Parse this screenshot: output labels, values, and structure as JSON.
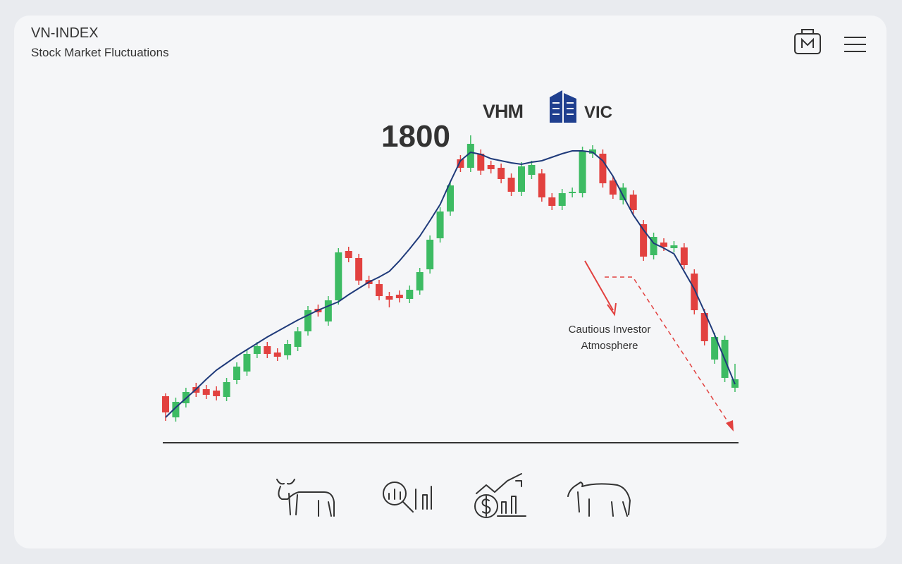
{
  "header": {
    "title": "VN-INDEX",
    "subtitle": "Stock Market Fluctuations"
  },
  "chart_data": {
    "type": "candlestick",
    "logos": [
      "VHM",
      "VIC"
    ],
    "annotation": [
      "Cautious Investor",
      "Atmosphere"
    ],
    "ylim": [
      1000,
      1900
    ],
    "yticks": [
      1800
    ],
    "up_color": "#3dbb63",
    "down_color": "#e2413f",
    "open": [
      1132,
      1072,
      1112,
      1158,
      1152,
      1148,
      1130,
      1178,
      1202,
      1252,
      1274,
      1256,
      1248,
      1272,
      1316,
      1380,
      1344,
      1404,
      1544,
      1524,
      1462,
      1450,
      1416,
      1420,
      1408,
      1432,
      1492,
      1580,
      1656,
      1804,
      1780,
      1820,
      1788,
      1780,
      1752,
      1712,
      1760,
      1764,
      1696,
      1672,
      1708,
      1708,
      1820,
      1820,
      1744,
      1688,
      1704,
      1620,
      1532,
      1568,
      1552,
      1554,
      1480,
      1368,
      1236,
      1184,
      1156
    ],
    "high": [
      1140,
      1128,
      1156,
      1170,
      1164,
      1160,
      1184,
      1228,
      1264,
      1286,
      1286,
      1268,
      1292,
      1328,
      1388,
      1392,
      1416,
      1552,
      1556,
      1536,
      1474,
      1462,
      1428,
      1432,
      1446,
      1496,
      1588,
      1668,
      1742,
      1816,
      1872,
      1832,
      1800,
      1792,
      1764,
      1796,
      1800,
      1776,
      1708,
      1720,
      1724,
      1840,
      1844,
      1832,
      1756,
      1736,
      1716,
      1632,
      1596,
      1580,
      1572,
      1566,
      1492,
      1380,
      1312,
      1304,
      1224
    ],
    "low": [
      1062,
      1060,
      1100,
      1130,
      1124,
      1120,
      1118,
      1166,
      1190,
      1240,
      1240,
      1232,
      1236,
      1260,
      1304,
      1358,
      1332,
      1392,
      1512,
      1448,
      1438,
      1404,
      1384,
      1398,
      1396,
      1420,
      1480,
      1568,
      1644,
      1768,
      1768,
      1760,
      1764,
      1736,
      1700,
      1700,
      1748,
      1684,
      1660,
      1660,
      1696,
      1696,
      1808,
      1724,
      1692,
      1676,
      1648,
      1516,
      1520,
      1544,
      1540,
      1492,
      1364,
      1276,
      1224,
      1172,
      1144
    ],
    "close": [
      1086,
      1116,
      1144,
      1142,
      1136,
      1132,
      1172,
      1216,
      1252,
      1274,
      1252,
      1244,
      1280,
      1316,
      1376,
      1370,
      1404,
      1540,
      1524,
      1460,
      1450,
      1416,
      1406,
      1410,
      1434,
      1484,
      1576,
      1656,
      1730,
      1780,
      1848,
      1772,
      1776,
      1748,
      1712,
      1784,
      1788,
      1696,
      1672,
      1708,
      1712,
      1828,
      1832,
      1736,
      1704,
      1724,
      1660,
      1528,
      1584,
      1556,
      1560,
      1504,
      1376,
      1288,
      1300,
      1292,
      1180
    ],
    "trend": {
      "color": "#1f3a7a",
      "values": [
        1072,
        1100,
        1126,
        1152,
        1180,
        1206,
        1226,
        1246,
        1264,
        1282,
        1300,
        1316,
        1332,
        1348,
        1362,
        1376,
        1388,
        1400,
        1420,
        1438,
        1456,
        1470,
        1486,
        1516,
        1550,
        1586,
        1630,
        1676,
        1740,
        1800,
        1824,
        1818,
        1806,
        1800,
        1794,
        1790,
        1796,
        1800,
        1810,
        1820,
        1828,
        1828,
        1824,
        1800,
        1756,
        1700,
        1646,
        1604,
        1566,
        1552,
        1536,
        1486,
        1436,
        1372,
        1306,
        1236,
        1166
      ]
    }
  }
}
